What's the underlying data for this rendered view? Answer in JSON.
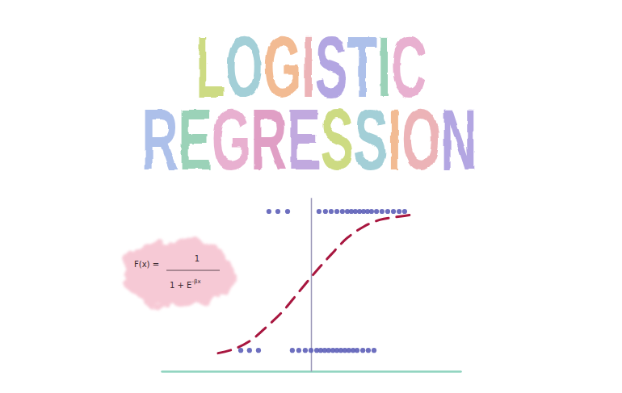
{
  "chart_data": {
    "type": "scatter",
    "title": "LOGISTIC REGRESSION",
    "annotation": {
      "label": "F(x) =",
      "numerator": "1",
      "denominator": "1 + E",
      "exponent": "-βx"
    },
    "xlim": [
      -6,
      6
    ],
    "ylim": [
      -0.15,
      1.1
    ],
    "xticks": [],
    "yticks": [],
    "tick_labels": false,
    "grid": false,
    "series": [
      {
        "type": "scatter",
        "marker": "circle",
        "color": "#5d5fb8",
        "x": [
          -2.82,
          -2.47,
          -2.11,
          -0.75,
          -0.49,
          -0.23,
          0.0,
          0.23,
          0.39,
          0.55,
          0.71,
          0.88,
          1.04,
          1.2,
          1.36,
          1.52,
          1.69,
          1.85,
          2.08,
          2.3,
          2.53
        ],
        "values": [
          0,
          0,
          0,
          0,
          0,
          0,
          0,
          0,
          0,
          0,
          0,
          0,
          0,
          0,
          0,
          0,
          0,
          0,
          0,
          0,
          0
        ]
      },
      {
        "type": "scatter",
        "marker": "circle",
        "color": "#5d5fb8",
        "x": [
          -1.69,
          -1.33,
          -0.94,
          0.32,
          0.58,
          0.81,
          1.04,
          1.26,
          1.46,
          1.62,
          1.78,
          1.95,
          2.11,
          2.27,
          2.43,
          2.63,
          2.85,
          3.08,
          3.31,
          3.54,
          3.76
        ],
        "values": [
          1,
          1,
          1,
          1,
          1,
          1,
          1,
          1,
          1,
          1,
          1,
          1,
          1,
          1,
          1,
          1,
          1,
          1,
          1,
          1,
          1
        ]
      },
      {
        "type": "line",
        "line_style": "dashed",
        "color": "#a8163f",
        "x": [
          -3.73,
          -3.08,
          -2.43,
          -1.78,
          -1.14,
          -0.49,
          0.16,
          0.81,
          1.46,
          2.11,
          2.76,
          3.41,
          4.22
        ],
        "values": [
          -0.02,
          0.01,
          0.07,
          0.17,
          0.28,
          0.42,
          0.56,
          0.69,
          0.81,
          0.89,
          0.94,
          0.96,
          0.98
        ]
      }
    ]
  }
}
